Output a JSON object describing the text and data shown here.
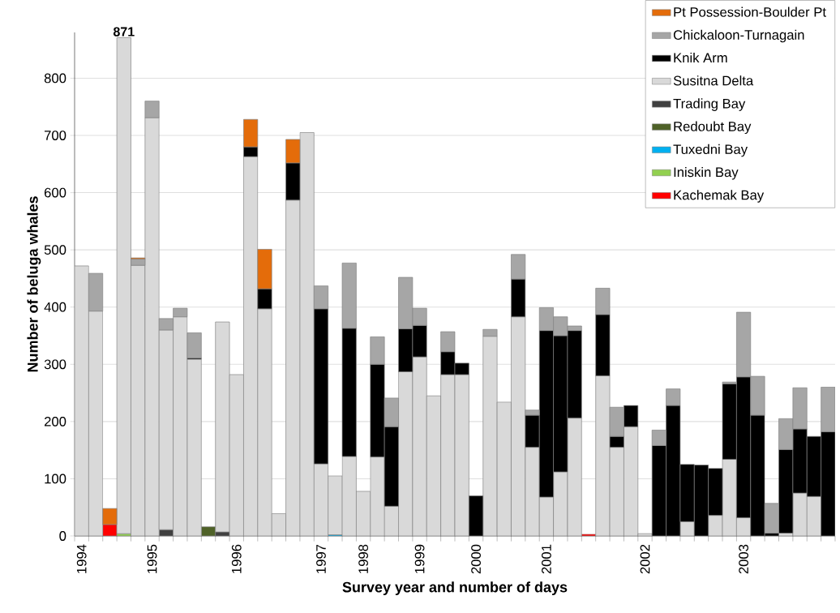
{
  "chart_data": {
    "type": "bar",
    "stacked": true,
    "xlabel": "Survey year and number of days",
    "ylabel": "Number of beluga whales",
    "categories": [
      "1994",
      null,
      null,
      null,
      null,
      "1995",
      null,
      null,
      null,
      null,
      null,
      "1996",
      null,
      null,
      null,
      null,
      null,
      "1997",
      null,
      null,
      "1998",
      null,
      null,
      null,
      "1999",
      null,
      null,
      null,
      "2000",
      null,
      null,
      null,
      null,
      "2001",
      null,
      null,
      null,
      null,
      null,
      null,
      "2002",
      null,
      null,
      null,
      null,
      null,
      null,
      "2003",
      null,
      null,
      null,
      null,
      null,
      null
    ],
    "series": [
      {
        "name": "Kachemak Bay",
        "color": "#ff0000",
        "values": [
          null,
          null,
          20,
          null,
          null,
          null,
          null,
          null,
          null,
          null,
          null,
          null,
          null,
          null,
          null,
          null,
          null,
          null,
          null,
          null,
          null,
          null,
          null,
          null,
          null,
          null,
          null,
          null,
          null,
          null,
          null,
          null,
          null,
          null,
          null,
          null,
          3,
          null,
          null,
          null,
          null,
          null,
          null,
          null,
          null,
          null,
          null,
          null,
          null,
          null,
          null,
          null,
          null,
          null
        ]
      },
      {
        "name": "Iniskin Bay",
        "color": "#92d050",
        "values": [
          null,
          null,
          null,
          4,
          null,
          null,
          null,
          null,
          null,
          null,
          null,
          null,
          null,
          null,
          null,
          null,
          null,
          null,
          null,
          null,
          null,
          null,
          null,
          null,
          null,
          null,
          null,
          null,
          null,
          null,
          null,
          null,
          null,
          null,
          null,
          null,
          null,
          null,
          null,
          null,
          null,
          null,
          null,
          null,
          null,
          null,
          null,
          null,
          null,
          null,
          null,
          null,
          null,
          null
        ]
      },
      {
        "name": "Tuxedni Bay",
        "color": "#00b0f0",
        "values": [
          null,
          null,
          null,
          null,
          null,
          null,
          null,
          null,
          null,
          null,
          null,
          null,
          null,
          null,
          null,
          null,
          null,
          null,
          2,
          null,
          null,
          null,
          null,
          null,
          null,
          null,
          null,
          null,
          null,
          null,
          null,
          null,
          null,
          null,
          null,
          null,
          null,
          null,
          null,
          null,
          null,
          null,
          null,
          null,
          null,
          null,
          null,
          null,
          null,
          null,
          null,
          null,
          null,
          null
        ]
      },
      {
        "name": "Redoubt Bay",
        "color": "#4f6228",
        "values": [
          null,
          null,
          null,
          null,
          null,
          null,
          null,
          null,
          null,
          16,
          null,
          null,
          null,
          null,
          null,
          null,
          null,
          null,
          null,
          null,
          null,
          null,
          null,
          null,
          null,
          null,
          null,
          null,
          null,
          null,
          null,
          null,
          null,
          null,
          null,
          null,
          null,
          null,
          null,
          null,
          null,
          null,
          null,
          null,
          null,
          null,
          null,
          null,
          null,
          null,
          null,
          null,
          null,
          null
        ]
      },
      {
        "name": "Trading Bay",
        "color": "#404040",
        "values": [
          null,
          null,
          null,
          null,
          null,
          null,
          11,
          null,
          null,
          null,
          7,
          null,
          null,
          null,
          null,
          null,
          null,
          null,
          null,
          null,
          null,
          null,
          null,
          null,
          null,
          null,
          null,
          null,
          null,
          null,
          null,
          null,
          null,
          null,
          null,
          null,
          null,
          null,
          null,
          null,
          null,
          null,
          null,
          null,
          null,
          null,
          null,
          null,
          null,
          null,
          null,
          null,
          null,
          null
        ]
      },
      {
        "name": "Susitna Delta",
        "color": "#d9d9d9",
        "values": [
          472,
          393,
          null,
          867,
          473,
          731,
          349,
          383,
          309,
          null,
          367,
          282,
          663,
          397,
          39,
          587,
          705,
          126,
          103,
          139,
          78,
          138,
          52,
          287,
          313,
          245,
          282,
          282,
          null,
          349,
          234,
          383,
          155,
          68,
          112,
          206,
          null,
          280,
          155,
          191,
          4,
          null,
          null,
          25,
          null,
          36,
          134,
          32,
          null,
          null,
          5,
          75,
          69,
          null
        ]
      },
      {
        "name": "Knik Arm",
        "color": "#000000",
        "values": [
          null,
          null,
          null,
          null,
          null,
          null,
          null,
          null,
          2,
          null,
          null,
          null,
          17,
          35,
          null,
          65,
          null,
          271,
          null,
          224,
          null,
          162,
          139,
          75,
          55,
          null,
          40,
          20,
          70,
          null,
          null,
          66,
          56,
          291,
          238,
          153,
          null,
          107,
          19,
          37,
          null,
          158,
          228,
          100,
          124,
          82,
          132,
          246,
          211,
          5,
          146,
          112,
          105,
          182
        ]
      },
      {
        "name": "Chickaloon-Turnagain",
        "color": "#a6a6a6",
        "values": [
          null,
          66,
          null,
          null,
          11,
          29,
          20,
          15,
          44,
          null,
          null,
          null,
          null,
          null,
          null,
          null,
          null,
          40,
          null,
          114,
          null,
          48,
          50,
          90,
          30,
          null,
          35,
          null,
          null,
          12,
          null,
          43,
          9,
          40,
          33,
          8,
          null,
          46,
          51,
          null,
          null,
          27,
          29,
          null,
          null,
          null,
          3,
          113,
          68,
          52,
          54,
          72,
          null,
          78
        ]
      },
      {
        "name": "Pt Possession-Boulder Pt",
        "color": "#e46c0a",
        "values": [
          null,
          null,
          28,
          null,
          2,
          null,
          null,
          null,
          null,
          null,
          null,
          null,
          48,
          69,
          null,
          41,
          null,
          null,
          null,
          null,
          null,
          null,
          null,
          null,
          null,
          null,
          null,
          null,
          null,
          null,
          null,
          null,
          null,
          null,
          null,
          null,
          null,
          null,
          null,
          null,
          null,
          null,
          null,
          null,
          null,
          null,
          null,
          null,
          null,
          null,
          null,
          null,
          null,
          null
        ]
      }
    ],
    "totals": [
      null,
      null,
      null,
      "871",
      null,
      null,
      null,
      null,
      null,
      null,
      null,
      null,
      null,
      null,
      null,
      null,
      null,
      null,
      null,
      null,
      null,
      null,
      null,
      null,
      null,
      null,
      null,
      null,
      null,
      null,
      null,
      null,
      null,
      null,
      null,
      null,
      null,
      null,
      null,
      null,
      null,
      null,
      null,
      null,
      null,
      null,
      null,
      null,
      null,
      null,
      null,
      null,
      null,
      null
    ],
    "ylim": [
      0,
      880
    ],
    "yticks": [
      0,
      100,
      200,
      300,
      400,
      500,
      600,
      700,
      800
    ],
    "grid": "y",
    "legend": "top right"
  }
}
